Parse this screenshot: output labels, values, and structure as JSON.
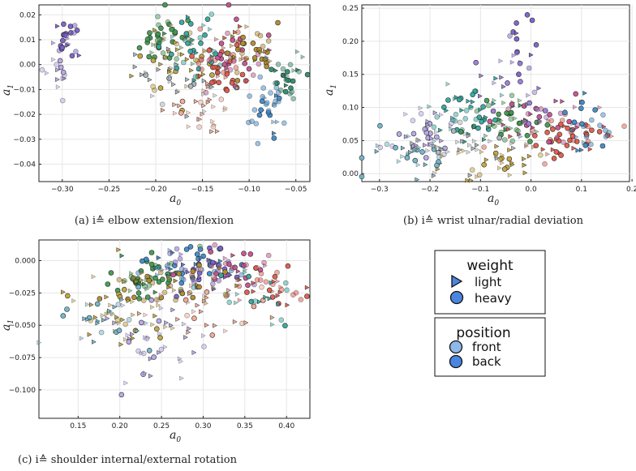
{
  "chart_data": [
    {
      "id": "a",
      "type": "scatter",
      "xlabel": "a",
      "xlabel_sub": "0",
      "ylabel": "a",
      "ylabel_sub": "1",
      "xlim": [
        -0.325,
        -0.035
      ],
      "ylim": [
        -0.047,
        0.024
      ],
      "xticks": [
        -0.3,
        -0.25,
        -0.2,
        -0.15,
        -0.1,
        -0.05
      ],
      "xtick_labels": [
        "−0.30",
        "−0.25",
        "−0.20",
        "−0.15",
        "−0.10",
        "−0.05"
      ],
      "yticks": [
        0.02,
        0.01,
        0.0,
        -0.01,
        -0.02,
        -0.03,
        -0.04
      ],
      "ytick_labels": [
        "0.02",
        "0.01",
        "0.00",
        "−0.01",
        "−0.02",
        "−0.03",
        "−0.04"
      ],
      "grid": true,
      "caption": "(a) i≙ elbow extension/flexion",
      "clusters": [
        {
          "cx": -0.295,
          "cy": 0.01,
          "sx": 0.007,
          "sy": 0.004,
          "n": 26,
          "color": "#7b5fc9",
          "heavy": 0.7
        },
        {
          "cx": -0.3,
          "cy": -0.003,
          "sx": 0.008,
          "sy": 0.004,
          "n": 14,
          "color": "#b7a6e6",
          "heavy": 0.4
        },
        {
          "cx": -0.195,
          "cy": 0.01,
          "sx": 0.014,
          "sy": 0.006,
          "n": 40,
          "color": "#3f9a4e",
          "heavy": 0.6
        },
        {
          "cx": -0.18,
          "cy": 0.003,
          "sx": 0.018,
          "sy": 0.007,
          "n": 40,
          "color": "#c0a43a",
          "heavy": 0.5
        },
        {
          "cx": -0.16,
          "cy": 0.008,
          "sx": 0.016,
          "sy": 0.007,
          "n": 34,
          "color": "#2fa9a0",
          "heavy": 0.6
        },
        {
          "cx": -0.125,
          "cy": 0.001,
          "sx": 0.017,
          "sy": 0.007,
          "n": 50,
          "color": "#e05a4a",
          "heavy": 0.65
        },
        {
          "cx": -0.12,
          "cy": 0.006,
          "sx": 0.015,
          "sy": 0.006,
          "n": 30,
          "color": "#c6508e",
          "heavy": 0.6
        },
        {
          "cx": -0.1,
          "cy": 0.004,
          "sx": 0.014,
          "sy": 0.006,
          "n": 36,
          "color": "#b08a2a",
          "heavy": 0.6
        },
        {
          "cx": -0.08,
          "cy": -0.016,
          "sx": 0.01,
          "sy": 0.007,
          "n": 34,
          "color": "#3d8ac9",
          "heavy": 0.7
        },
        {
          "cx": -0.06,
          "cy": -0.005,
          "sx": 0.009,
          "sy": 0.006,
          "n": 28,
          "color": "#2e8b6e",
          "heavy": 0.7
        },
        {
          "cx": -0.15,
          "cy": -0.018,
          "sx": 0.018,
          "sy": 0.006,
          "n": 30,
          "color": "#f0a994",
          "heavy": 0.2
        },
        {
          "cx": -0.17,
          "cy": -0.006,
          "sx": 0.025,
          "sy": 0.006,
          "n": 30,
          "color": "#a9b4b9",
          "heavy": 0.2
        }
      ]
    },
    {
      "id": "b",
      "type": "scatter",
      "xlabel": "a",
      "xlabel_sub": "0",
      "ylabel": "a",
      "ylabel_sub": "1",
      "xlim": [
        -0.335,
        0.195
      ],
      "ylim": [
        -0.012,
        0.255
      ],
      "xticks": [
        -0.3,
        -0.2,
        -0.1,
        0.0,
        0.1,
        0.2
      ],
      "xtick_labels": [
        "−0.3",
        "−0.2",
        "−0.1",
        "0.0",
        "0.1",
        "0.2"
      ],
      "yticks": [
        0.25,
        0.2,
        0.15,
        0.1,
        0.05,
        0.0
      ],
      "ytick_labels": [
        "0.25",
        "0.20",
        "0.15",
        "0.10",
        "0.05",
        "0.00"
      ],
      "grid": true,
      "caption": "(b) i≙ wrist ulnar/radial deviation",
      "clusters": [
        {
          "cx": -0.02,
          "cy": 0.2,
          "sx": 0.02,
          "sy": 0.025,
          "n": 16,
          "color": "#7b5fc9",
          "heavy": 0.6
        },
        {
          "cx": -0.21,
          "cy": 0.06,
          "sx": 0.035,
          "sy": 0.02,
          "n": 40,
          "color": "#b7a6e6",
          "heavy": 0.4
        },
        {
          "cx": -0.24,
          "cy": 0.03,
          "sx": 0.04,
          "sy": 0.015,
          "n": 30,
          "color": "#6fb5c9",
          "heavy": 0.4
        },
        {
          "cx": -0.12,
          "cy": 0.09,
          "sx": 0.04,
          "sy": 0.02,
          "n": 50,
          "color": "#2fa9a0",
          "heavy": 0.6
        },
        {
          "cx": -0.05,
          "cy": 0.08,
          "sx": 0.04,
          "sy": 0.02,
          "n": 44,
          "color": "#3f9a4e",
          "heavy": 0.6
        },
        {
          "cx": 0.06,
          "cy": 0.055,
          "sx": 0.05,
          "sy": 0.015,
          "n": 50,
          "color": "#e05a4a",
          "heavy": 0.7
        },
        {
          "cx": 0.03,
          "cy": 0.085,
          "sx": 0.045,
          "sy": 0.018,
          "n": 36,
          "color": "#c6508e",
          "heavy": 0.6
        },
        {
          "cx": 0.12,
          "cy": 0.065,
          "sx": 0.03,
          "sy": 0.018,
          "n": 24,
          "color": "#3d8ac9",
          "heavy": 0.7
        },
        {
          "cx": -0.08,
          "cy": 0.02,
          "sx": 0.05,
          "sy": 0.015,
          "n": 34,
          "color": "#c0a43a",
          "heavy": 0.3
        },
        {
          "cx": -0.04,
          "cy": 0.13,
          "sx": 0.045,
          "sy": 0.03,
          "n": 22,
          "color": "#9a7ad8",
          "heavy": 0.6
        },
        {
          "cx": -0.16,
          "cy": 0.04,
          "sx": 0.05,
          "sy": 0.02,
          "n": 30,
          "color": "#a9b4b9",
          "heavy": 0.2
        }
      ]
    },
    {
      "id": "c",
      "type": "scatter",
      "xlabel": "a",
      "xlabel_sub": "0",
      "ylabel": "a",
      "ylabel_sub": "1",
      "xlim": [
        0.103,
        0.428
      ],
      "ylim": [
        -0.122,
        0.016
      ],
      "xticks": [
        0.15,
        0.2,
        0.25,
        0.3,
        0.35,
        0.4
      ],
      "xtick_labels": [
        "0.15",
        "0.20",
        "0.25",
        "0.30",
        "0.35",
        "0.40"
      ],
      "yticks": [
        0.0,
        -0.025,
        -0.05,
        -0.075,
        -0.1
      ],
      "ytick_labels": [
        "0.000",
        "−0.025",
        "−0.050",
        "−0.075",
        "−0.100"
      ],
      "grid": true,
      "caption": "(c) i≙ shoulder internal/external rotation",
      "clusters": [
        {
          "cx": 0.24,
          "cy": -0.012,
          "sx": 0.03,
          "sy": 0.009,
          "n": 50,
          "color": "#3f9a4e",
          "heavy": 0.7
        },
        {
          "cx": 0.28,
          "cy": -0.005,
          "sx": 0.03,
          "sy": 0.008,
          "n": 44,
          "color": "#3d8ac9",
          "heavy": 0.7
        },
        {
          "cx": 0.31,
          "cy": -0.01,
          "sx": 0.03,
          "sy": 0.01,
          "n": 40,
          "color": "#7b5fc9",
          "heavy": 0.7
        },
        {
          "cx": 0.33,
          "cy": -0.005,
          "sx": 0.025,
          "sy": 0.008,
          "n": 30,
          "color": "#c6508e",
          "heavy": 0.7
        },
        {
          "cx": 0.38,
          "cy": -0.02,
          "sx": 0.025,
          "sy": 0.008,
          "n": 30,
          "color": "#e05a4a",
          "heavy": 0.7
        },
        {
          "cx": 0.26,
          "cy": -0.02,
          "sx": 0.04,
          "sy": 0.01,
          "n": 40,
          "color": "#b08a2a",
          "heavy": 0.6
        },
        {
          "cx": 0.2,
          "cy": -0.04,
          "sx": 0.035,
          "sy": 0.015,
          "n": 40,
          "color": "#c0a43a",
          "heavy": 0.3
        },
        {
          "cx": 0.24,
          "cy": -0.065,
          "sx": 0.03,
          "sy": 0.018,
          "n": 40,
          "color": "#b7a6e6",
          "heavy": 0.3
        },
        {
          "cx": 0.3,
          "cy": -0.04,
          "sx": 0.04,
          "sy": 0.015,
          "n": 34,
          "color": "#f0a994",
          "heavy": 0.3
        },
        {
          "cx": 0.18,
          "cy": -0.05,
          "sx": 0.03,
          "sy": 0.015,
          "n": 26,
          "color": "#6fb5c9",
          "heavy": 0.3
        },
        {
          "cx": 0.36,
          "cy": -0.03,
          "sx": 0.03,
          "sy": 0.012,
          "n": 20,
          "color": "#2fa9a0",
          "heavy": 0.6
        }
      ]
    }
  ],
  "legend": {
    "weight": {
      "title": "weight",
      "items": [
        {
          "label": "light",
          "marker": "triangle-right",
          "color": "#4a86e0"
        },
        {
          "label": "heavy",
          "marker": "circle",
          "color": "#4a86e0"
        }
      ]
    },
    "position": {
      "title": "position",
      "items": [
        {
          "label": "front",
          "marker": "circle",
          "color": "#8fb8ea"
        },
        {
          "label": "back",
          "marker": "circle",
          "color": "#4a86e0"
        }
      ]
    }
  }
}
